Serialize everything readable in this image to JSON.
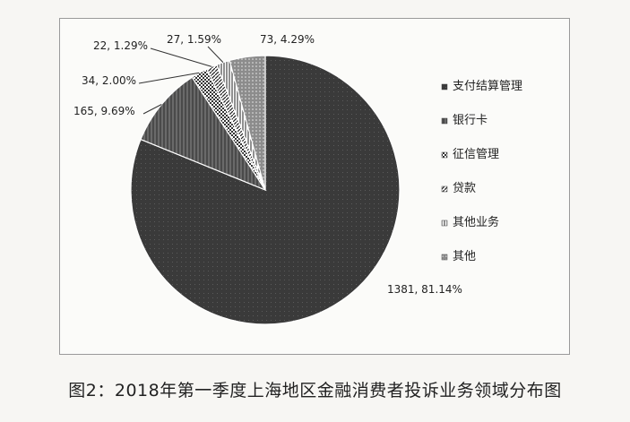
{
  "chart_data": {
    "type": "pie",
    "title": "",
    "slices": [
      {
        "name": "支付结算管理",
        "value": 1381,
        "percent": 81.14,
        "label": "1381, 81.14%",
        "color": "#3a3a3a",
        "pattern": "dots-dark"
      },
      {
        "name": "银行卡",
        "value": 165,
        "percent": 9.69,
        "label": "165, 9.69%",
        "color": "#555555",
        "pattern": "dark-vertical"
      },
      {
        "name": "征信管理",
        "value": 34,
        "percent": 2.0,
        "label": "34, 2.00%",
        "color": "#777777",
        "pattern": "checker"
      },
      {
        "name": "贷款",
        "value": 22,
        "percent": 1.29,
        "label": "22, 1.29%",
        "color": "#ffffff",
        "pattern": "diagonal"
      },
      {
        "name": "其他业务",
        "value": 27,
        "percent": 1.59,
        "label": "27, 1.59%",
        "color": "#ffffff",
        "pattern": "vertical"
      },
      {
        "name": "其他",
        "value": 73,
        "percent": 4.29,
        "label": "73, 4.29%",
        "color": "#8a8a8a",
        "pattern": "dots-light"
      }
    ],
    "legend_position": "right"
  },
  "caption": "图2：2018年第一季度上海地区金融消费者投诉业务领域分布图"
}
